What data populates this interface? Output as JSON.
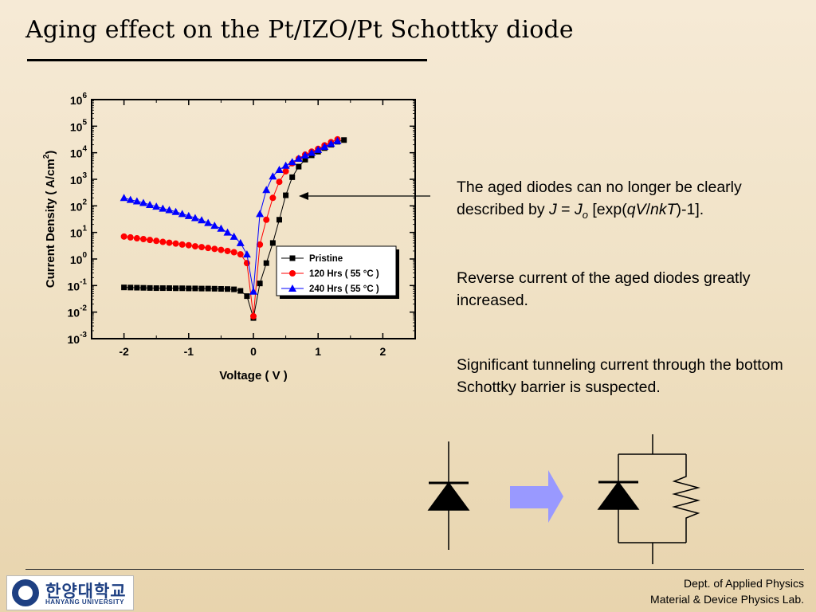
{
  "slide": {
    "title": "Aging effect on the Pt/IZO/Pt Schottky diode"
  },
  "chart_data": {
    "type": "scatter",
    "xlabel": "Voltage ( V )",
    "ylabel": "Current Density ( A/cm",
    "ylabel_sup": "2",
    "ylabel_end": ")",
    "x_ticks": [
      "-2",
      "-1",
      "0",
      "1",
      "2"
    ],
    "y_ticks": [
      {
        "base": "10",
        "exp": "6"
      },
      {
        "base": "10",
        "exp": "5"
      },
      {
        "base": "10",
        "exp": "4"
      },
      {
        "base": "10",
        "exp": "3"
      },
      {
        "base": "10",
        "exp": "2"
      },
      {
        "base": "10",
        "exp": "1"
      },
      {
        "base": "10",
        "exp": "0"
      },
      {
        "base": "10",
        "exp": "-1"
      },
      {
        "base": "10",
        "exp": "-2"
      },
      {
        "base": "10",
        "exp": "-3"
      }
    ],
    "xlim": [
      -2.5,
      2.5
    ],
    "ylim_log10": [
      -3,
      6
    ],
    "y_scale": "log",
    "legend_position": "lower-right",
    "series": [
      {
        "name": "Pristine",
        "color": "#000000",
        "marker": "square",
        "x": [
          -2.0,
          -1.9,
          -1.8,
          -1.7,
          -1.6,
          -1.5,
          -1.4,
          -1.3,
          -1.2,
          -1.1,
          -1.0,
          -0.9,
          -0.8,
          -0.7,
          -0.6,
          -0.5,
          -0.4,
          -0.3,
          -0.2,
          -0.1,
          0.0,
          0.1,
          0.2,
          0.3,
          0.4,
          0.5,
          0.6,
          0.7,
          0.8,
          0.9,
          1.0,
          1.1,
          1.2,
          1.3,
          1.4
        ],
        "y": [
          0.085,
          0.084,
          0.083,
          0.082,
          0.081,
          0.08,
          0.08,
          0.08,
          0.079,
          0.079,
          0.078,
          0.078,
          0.077,
          0.077,
          0.076,
          0.075,
          0.074,
          0.072,
          0.063,
          0.04,
          0.006,
          0.12,
          0.7,
          4,
          30,
          250,
          1200,
          3000,
          5500,
          8000,
          11000,
          15000,
          20000,
          26000,
          30000
        ]
      },
      {
        "name": "120 Hrs ( 55 °C )",
        "color": "#ff0000",
        "marker": "circle",
        "x": [
          -2.0,
          -1.9,
          -1.8,
          -1.7,
          -1.6,
          -1.5,
          -1.4,
          -1.3,
          -1.2,
          -1.1,
          -1.0,
          -0.9,
          -0.8,
          -0.7,
          -0.6,
          -0.5,
          -0.4,
          -0.3,
          -0.2,
          -0.1,
          0.0,
          0.1,
          0.2,
          0.3,
          0.4,
          0.5,
          0.6,
          0.7,
          0.8,
          0.9,
          1.0,
          1.1,
          1.2,
          1.3
        ],
        "y": [
          7,
          6.5,
          6,
          5.6,
          5.2,
          4.8,
          4.4,
          4.1,
          3.8,
          3.5,
          3.3,
          3.0,
          2.8,
          2.6,
          2.4,
          2.2,
          2.0,
          1.8,
          1.5,
          0.7,
          0.007,
          3.5,
          30,
          200,
          800,
          2000,
          4000,
          6000,
          8500,
          11000,
          14000,
          19000,
          25000,
          32000
        ]
      },
      {
        "name": "240 Hrs ( 55 °C )",
        "color": "#0000ff",
        "marker": "triangle",
        "x": [
          -2.0,
          -1.9,
          -1.8,
          -1.7,
          -1.6,
          -1.5,
          -1.4,
          -1.3,
          -1.2,
          -1.1,
          -1.0,
          -0.9,
          -0.8,
          -0.7,
          -0.6,
          -0.5,
          -0.4,
          -0.3,
          -0.2,
          -0.1,
          0.0,
          0.1,
          0.2,
          0.3,
          0.4,
          0.5,
          0.6,
          0.7,
          0.8,
          0.9,
          1.0,
          1.1,
          1.2,
          1.3
        ],
        "y": [
          200,
          170,
          150,
          130,
          110,
          95,
          80,
          70,
          60,
          50,
          42,
          35,
          29,
          23,
          18,
          14,
          10,
          7,
          4,
          1.5,
          0.06,
          50,
          400,
          1300,
          2300,
          3300,
          4500,
          6000,
          8000,
          10000,
          13000,
          17000,
          22000,
          28000
        ]
      }
    ]
  },
  "notes": {
    "note1": {
      "pre": "The aged diodes can no longer be clearly described by ",
      "J": "J",
      "eq": " = ",
      "Jo": "J",
      "o": "o",
      "bracket": " [exp(",
      "qV": "qV",
      "slash": "/",
      "nkT": "nkT",
      "end": ")-1]."
    },
    "note2": "Reverse current of the aged diodes greatly increased.",
    "note3": "Significant tunneling current through the bottom Schottky barrier is suspected."
  },
  "colors": {
    "arrow": "#9999ff",
    "background": "#f0e2c6"
  },
  "footer": {
    "logo_ko": "한양대학교",
    "logo_en": "HANYANG UNIVERSITY",
    "dept_line1": "Dept. of Applied Physics",
    "dept_line2": "Material & Device Physics Lab."
  }
}
